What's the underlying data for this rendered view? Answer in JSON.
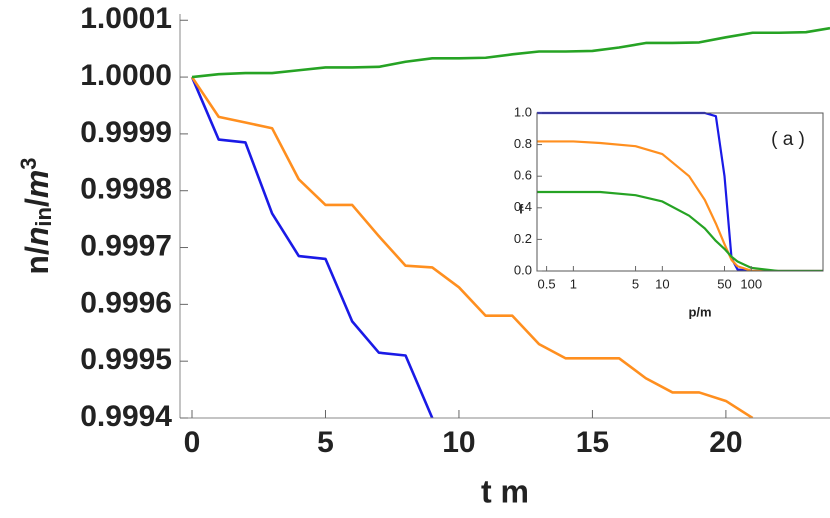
{
  "chart_data": [
    {
      "type": "line",
      "xlabel": "t m",
      "ylabel": [
        "n/",
        "n",
        "in",
        "/",
        "m",
        "3"
      ],
      "xlim": [
        -0.45,
        23.9
      ],
      "ylim": [
        0.9994,
        1.000111
      ],
      "xticks": [
        0,
        5,
        10,
        15,
        20
      ],
      "yticks": [
        0.9994,
        0.9995,
        0.9996,
        0.9997,
        0.9998,
        0.9999,
        {
          "value": 1.0,
          "label": "1.0000"
        },
        1.0001
      ],
      "x": [
        0,
        1,
        2,
        3,
        4,
        5,
        6,
        7,
        8,
        9,
        10,
        11,
        12,
        13,
        14,
        15,
        16,
        17,
        18,
        19,
        20,
        21,
        22,
        23,
        23.9
      ],
      "series": [
        {
          "color": "#1a1ae6",
          "values": [
            1.0,
            0.99989,
            0.999885,
            0.99976,
            0.999685,
            0.99968,
            0.99957,
            0.999515,
            0.99951,
            0.9994,
            null,
            null,
            null,
            null,
            null,
            null,
            null,
            null,
            null,
            null,
            null,
            null,
            null,
            null,
            null
          ]
        },
        {
          "color": "#ff8f1f",
          "values": [
            1.0,
            0.99993,
            0.99992,
            0.99991,
            0.99982,
            0.999775,
            0.999775,
            0.99972,
            0.999668,
            0.999665,
            0.99963,
            0.99958,
            0.99958,
            0.99953,
            0.999505,
            0.999505,
            0.999505,
            0.99947,
            0.999445,
            0.999445,
            0.99943,
            0.9994,
            null,
            null,
            null
          ]
        },
        {
          "color": "#26a324",
          "values": [
            1.0,
            1.000005,
            1.000007,
            1.000007,
            1.000012,
            1.000017,
            1.000017,
            1.000018,
            1.000027,
            1.000033,
            1.000033,
            1.000034,
            1.00004,
            1.000045,
            1.000045,
            1.000046,
            1.000052,
            1.00006,
            1.00006,
            1.000061,
            1.00007,
            1.000078,
            1.000078,
            1.000079,
            1.000086
          ]
        }
      ]
    },
    {
      "type": "line",
      "xscale": "log",
      "xlabel": "p/m",
      "ylabel": [
        "f"
      ],
      "annotation": "( a )",
      "xlim": [
        0.39,
        640
      ],
      "ylim": [
        0,
        1
      ],
      "xticks": [
        0.5,
        1,
        5,
        10,
        50,
        100
      ],
      "yticks": [
        {
          "value": 0,
          "label": "0.0"
        },
        0.2,
        0.4,
        0.6,
        0.8,
        {
          "value": 1,
          "label": "1.0"
        }
      ],
      "x": [
        0.39,
        0.5,
        1,
        2,
        5,
        10,
        20,
        30,
        40,
        50,
        60,
        70,
        100,
        200,
        640
      ],
      "series": [
        {
          "color": "#1a1ae6",
          "values": [
            1,
            1,
            1,
            1,
            1,
            1,
            1,
            1,
            0.98,
            0.6,
            0.08,
            0.01,
            0,
            0,
            0
          ]
        },
        {
          "color": "#ff8f1f",
          "values": [
            0.82,
            0.82,
            0.82,
            0.81,
            0.79,
            0.74,
            0.6,
            0.45,
            0.3,
            0.17,
            0.07,
            0.03,
            0.002,
            0,
            0
          ]
        },
        {
          "color": "#26a324",
          "values": [
            0.5,
            0.5,
            0.5,
            0.5,
            0.48,
            0.44,
            0.35,
            0.27,
            0.19,
            0.14,
            0.09,
            0.06,
            0.02,
            0,
            0
          ]
        }
      ]
    }
  ]
}
